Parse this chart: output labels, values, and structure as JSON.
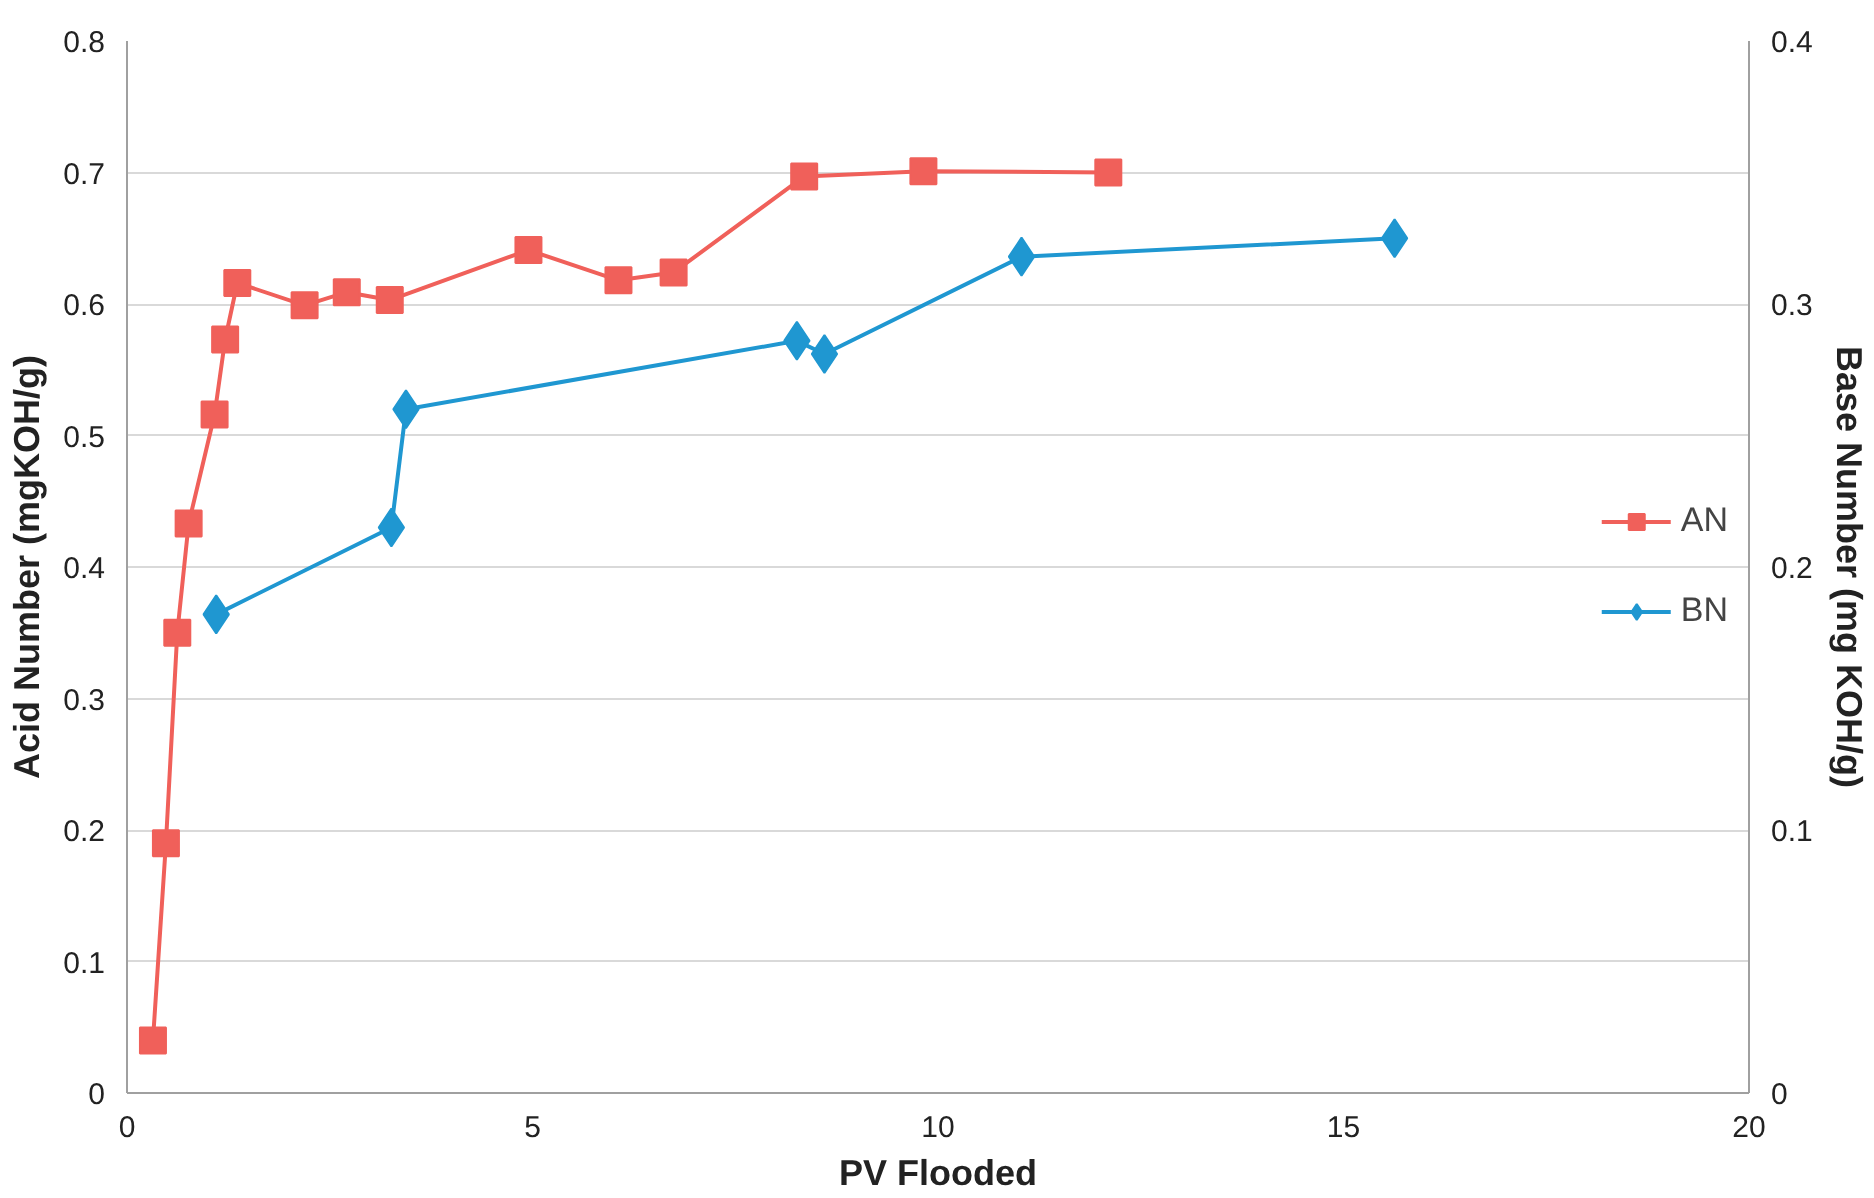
{
  "chart_data": {
    "type": "line",
    "xlabel": "PV Flooded",
    "ylabel": "Acid Number (mgKOH/g)",
    "y2label": "Base Number (mg KOH/g)",
    "xlim": [
      0,
      20
    ],
    "xticks": [
      0,
      5,
      10,
      15,
      20
    ],
    "ylim": [
      0,
      0.8
    ],
    "yticks": [
      0,
      0.1,
      0.2,
      0.3,
      0.4,
      0.5,
      0.6,
      0.7,
      0.8
    ],
    "y2lim": [
      0,
      0.4
    ],
    "y2ticks": [
      0,
      0.1,
      0.2,
      0.3,
      0.4
    ],
    "grid": "y",
    "legend": "right",
    "series": [
      {
        "name": "AN",
        "color": "#f0605a",
        "marker": "square",
        "x": [
          0.32,
          0.48,
          0.62,
          0.76,
          1.08,
          1.21,
          1.36,
          2.19,
          2.71,
          3.24,
          4.95,
          6.06,
          6.74,
          8.35,
          9.82,
          12.1
        ],
        "values": [
          0.04,
          0.19,
          0.35,
          0.433,
          0.516,
          0.573,
          0.616,
          0.599,
          0.609,
          0.603,
          0.641,
          0.618,
          0.624,
          0.697,
          0.701,
          0.7
        ]
      },
      {
        "name": "BN",
        "color": "#1f97d1",
        "marker": "diamond",
        "axis": "y2",
        "x": [
          1.1,
          3.26,
          3.44,
          8.26,
          8.6,
          11.03,
          15.63
        ],
        "values": [
          0.182,
          0.215,
          0.26,
          0.286,
          0.281,
          0.318,
          0.325
        ]
      }
    ]
  }
}
